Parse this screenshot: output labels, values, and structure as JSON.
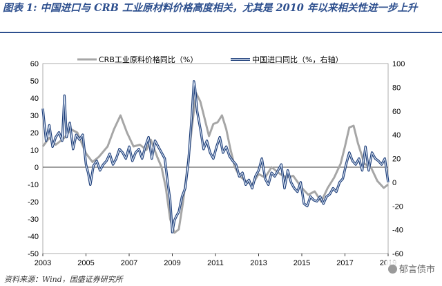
{
  "title": "图表 1:  中国进口与 CRB 工业原材料价格高度相关，尤其是 2010 年以来相关性进一步上升",
  "source": "资料来源：Wind，国盛证券研究所",
  "watermark": "郁言债市",
  "colors": {
    "crb": "#a6a6a6",
    "import_outer": "#1f3f7a",
    "import_inner": "#dbe6f4",
    "title": "#2d4f8e"
  },
  "chart_data": {
    "type": "line",
    "x_ticks": [
      "2003",
      "2005",
      "2007",
      "2009",
      "2011",
      "2013",
      "2015",
      "2017",
      "2019"
    ],
    "xlim": [
      2003,
      2019.0
    ],
    "y_left": {
      "lim": [
        -50,
        60
      ],
      "ticks": [
        "60",
        "50",
        "40",
        "30",
        "20",
        "10",
        "0",
        "-10",
        "-20",
        "-30",
        "-40",
        "-50"
      ]
    },
    "y_right": {
      "lim": [
        -60,
        100
      ],
      "ticks": [
        "100",
        "80",
        "60",
        "40",
        "20",
        "0",
        "-20",
        "-40",
        "-60"
      ]
    },
    "series": [
      {
        "name": "CRB工业原料价格同比（%）",
        "axis": "left",
        "x": [
          2003.0,
          2003.3,
          2003.6,
          2004.0,
          2004.3,
          2004.6,
          2005.0,
          2005.3,
          2005.6,
          2006.0,
          2006.3,
          2006.6,
          2006.9,
          2007.2,
          2007.5,
          2007.8,
          2008.0,
          2008.3,
          2008.5,
          2008.7,
          2008.9,
          2009.1,
          2009.3,
          2009.5,
          2009.7,
          2009.9,
          2010.1,
          2010.3,
          2010.5,
          2010.7,
          2010.9,
          2011.1,
          2011.3,
          2011.5,
          2011.7,
          2011.9,
          2012.1,
          2012.4,
          2012.7,
          2013.0,
          2013.3,
          2013.6,
          2014.0,
          2014.3,
          2014.6,
          2015.0,
          2015.3,
          2015.6,
          2015.9,
          2016.2,
          2016.5,
          2016.8,
          2017.0,
          2017.2,
          2017.4,
          2017.6,
          2017.9,
          2018.2,
          2018.5,
          2018.8,
          2019.0
        ],
        "values": [
          12,
          17,
          13,
          17,
          22,
          20,
          8,
          3,
          6,
          12,
          22,
          30,
          20,
          12,
          13,
          10,
          16,
          6,
          0,
          -12,
          -30,
          -38,
          -36,
          -20,
          0,
          22,
          43,
          38,
          28,
          18,
          25,
          26,
          30,
          22,
          10,
          0,
          -5,
          -8,
          -10,
          -4,
          -6,
          0,
          -4,
          -6,
          -5,
          -12,
          -16,
          -14,
          -20,
          -12,
          -6,
          2,
          12,
          23,
          24,
          14,
          2,
          0,
          -8,
          -12,
          -10
        ]
      },
      {
        "name": "中国进口同比（%，右轴）",
        "axis": "right",
        "x": [
          2003.0,
          2003.15,
          2003.3,
          2003.45,
          2003.6,
          2003.75,
          2003.9,
          2004.0,
          2004.1,
          2004.25,
          2004.4,
          2004.55,
          2004.7,
          2004.85,
          2005.0,
          2005.1,
          2005.2,
          2005.35,
          2005.5,
          2005.65,
          2005.8,
          2005.95,
          2006.1,
          2006.25,
          2006.4,
          2006.55,
          2006.7,
          2006.85,
          2007.0,
          2007.15,
          2007.3,
          2007.45,
          2007.6,
          2007.75,
          2007.9,
          2008.05,
          2008.2,
          2008.35,
          2008.5,
          2008.65,
          2008.8,
          2008.9,
          2009.0,
          2009.1,
          2009.2,
          2009.3,
          2009.45,
          2009.6,
          2009.75,
          2009.9,
          2010.0,
          2010.05,
          2010.15,
          2010.3,
          2010.45,
          2010.6,
          2010.75,
          2010.9,
          2011.05,
          2011.2,
          2011.35,
          2011.5,
          2011.65,
          2011.8,
          2011.95,
          2012.1,
          2012.25,
          2012.4,
          2012.55,
          2012.7,
          2012.85,
          2013.0,
          2013.15,
          2013.3,
          2013.45,
          2013.6,
          2013.75,
          2013.9,
          2014.05,
          2014.2,
          2014.35,
          2014.5,
          2014.65,
          2014.8,
          2014.95,
          2015.1,
          2015.25,
          2015.4,
          2015.55,
          2015.7,
          2015.85,
          2016.0,
          2016.15,
          2016.3,
          2016.45,
          2016.6,
          2016.75,
          2016.9,
          2017.05,
          2017.2,
          2017.35,
          2017.5,
          2017.65,
          2017.8,
          2017.95,
          2018.1,
          2018.25,
          2018.4,
          2018.55,
          2018.7,
          2018.85,
          2019.0
        ],
        "values": [
          62,
          35,
          48,
          30,
          38,
          42,
          35,
          73,
          38,
          50,
          28,
          40,
          36,
          40,
          15,
          8,
          -2,
          14,
          18,
          10,
          15,
          18,
          24,
          15,
          20,
          28,
          25,
          20,
          30,
          18,
          25,
          28,
          20,
          30,
          38,
          20,
          35,
          30,
          25,
          20,
          -2,
          -15,
          -42,
          -32,
          -28,
          -25,
          -12,
          -5,
          18,
          55,
          85,
          80,
          60,
          45,
          28,
          35,
          25,
          20,
          30,
          38,
          25,
          30,
          22,
          18,
          15,
          5,
          8,
          -2,
          2,
          -5,
          5,
          10,
          20,
          3,
          -2,
          8,
          5,
          10,
          15,
          -5,
          10,
          0,
          -5,
          -8,
          0,
          -18,
          -20,
          -12,
          -15,
          -16,
          -12,
          -18,
          -12,
          -10,
          -5,
          -8,
          0,
          3,
          15,
          25,
          18,
          15,
          20,
          10,
          30,
          10,
          25,
          20,
          18,
          15,
          20,
          0
        ]
      }
    ]
  }
}
